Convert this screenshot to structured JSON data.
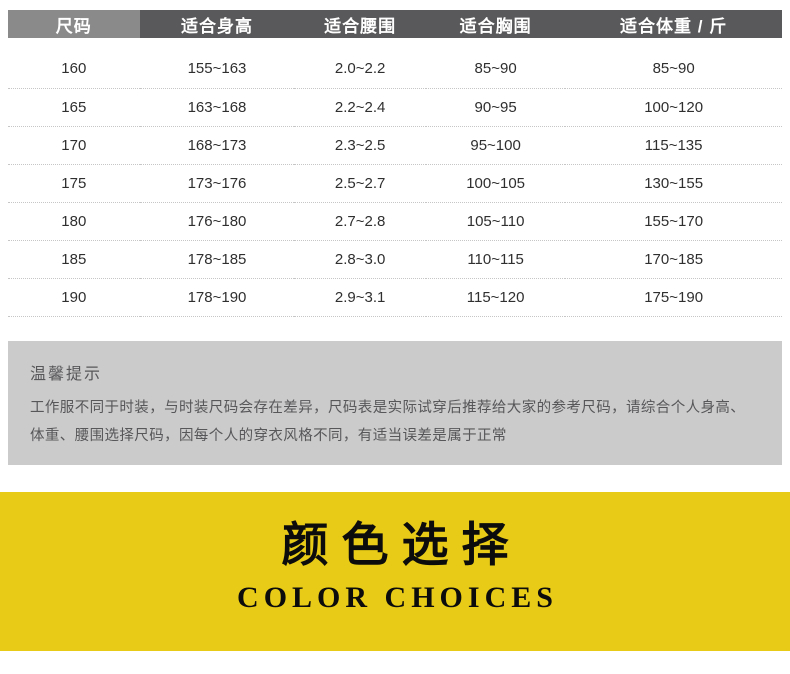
{
  "size_table": {
    "columns": [
      "尺码",
      "适合身高",
      "适合腰围",
      "适合胸围",
      "适合体重 / 斤"
    ],
    "rows": [
      [
        "160",
        "155~163",
        "2.0~2.2",
        "85~90",
        "85~90"
      ],
      [
        "165",
        "163~168",
        "2.2~2.4",
        "90~95",
        "100~120"
      ],
      [
        "170",
        "168~173",
        "2.3~2.5",
        "95~100",
        "115~135"
      ],
      [
        "175",
        "173~176",
        "2.5~2.7",
        "100~105",
        "130~155"
      ],
      [
        "180",
        "176~180",
        "2.7~2.8",
        "105~110",
        "155~170"
      ],
      [
        "185",
        "178~185",
        "2.8~3.0",
        "110~115",
        "170~185"
      ],
      [
        "190",
        "178~190",
        "2.9~3.1",
        "115~120",
        "175~190"
      ]
    ]
  },
  "tips": {
    "title": "温馨提示",
    "body": "工作服不同于时装，与时装尺码会存在差异，尺码表是实际试穿后推荐给大家的参考尺码，请综合个人身高、体重、腰围选择尺码，因每个人的穿衣风格不同，有适当误差是属于正常"
  },
  "banner": {
    "title_cn": "颜色选择",
    "title_en": "COLOR CHOICES"
  },
  "colors": {
    "header_first_bg": "#8a8a8a",
    "header_bg": "#59595b",
    "tips_bg": "#cbcbcb",
    "banner_bg": "#e8cb16",
    "banner_text": "#0c0c0c",
    "row_divider": "#c6c6c6"
  }
}
